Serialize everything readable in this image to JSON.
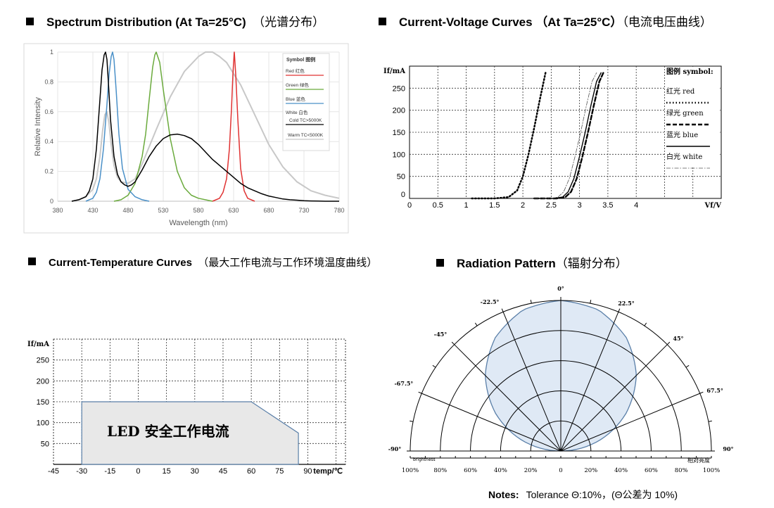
{
  "titles": {
    "spectrum": {
      "en": "Spectrum Distribution (At Ta=25°C)",
      "cn": "（光谱分布）"
    },
    "iv": {
      "en": "Current-Voltage Curves （At Ta=25°C）",
      "cn": "（电流电压曲线）"
    },
    "it": {
      "en": "Current-Temperature Curves",
      "cn": "（最大工作电流与工作环境温度曲线）"
    },
    "radiation": {
      "en": "Radiation Pattern",
      "cn": "（辐射分布）"
    }
  },
  "notes": {
    "label": "Notes:",
    "text": "Tolerance Θ:10%，(Θ公差为 10%)"
  },
  "chart_data": [
    {
      "id": "spectrum",
      "type": "line",
      "xlabel": "Wavelength (nm)",
      "ylabel": "Relative Intensity",
      "xlim": [
        380,
        780
      ],
      "ylim": [
        0,
        1
      ],
      "xticks": [
        "380",
        "430",
        "480",
        "530",
        "580",
        "630",
        "680",
        "730",
        "780"
      ],
      "yticks": [
        "0",
        "0.2",
        "0.4",
        "0.6",
        "0.8",
        "1"
      ],
      "legend_title": "Symbol 图例",
      "legend_position": "top-right",
      "colors": {
        "red": "#e03232",
        "green": "#6aaa3c",
        "blue": "#4a90c8",
        "cold": "#000000",
        "warm": "#c8c8c8"
      },
      "legend": [
        {
          "label": "Red 红色",
          "color": "#e03232"
        },
        {
          "label": "Green 绿色",
          "color": "#6aaa3c"
        },
        {
          "label": "Blue 蓝色",
          "color": "#4a90c8"
        },
        {
          "label": "White 白色",
          "color": "#4a90c8"
        },
        {
          "label": "Cold  TC>5000K",
          "color": "#000000"
        },
        {
          "label": "Warm  TC<5000K",
          "color": "#c8c8c8"
        }
      ],
      "series": [
        {
          "name": "Red 红色",
          "x": [
            600,
            610,
            615,
            620,
            624,
            627,
            629,
            630,
            631,
            633,
            636,
            640,
            645,
            650,
            660
          ],
          "y": [
            0,
            0.02,
            0.06,
            0.15,
            0.35,
            0.62,
            0.85,
            0.93,
            1.0,
            0.85,
            0.55,
            0.22,
            0.07,
            0.02,
            0
          ]
        },
        {
          "name": "Green 绿色",
          "x": [
            460,
            470,
            480,
            490,
            500,
            505,
            510,
            515,
            518,
            520,
            525,
            530,
            540,
            550,
            560,
            570,
            580,
            600
          ],
          "y": [
            0,
            0.01,
            0.04,
            0.12,
            0.3,
            0.45,
            0.68,
            0.9,
            0.98,
            1.0,
            0.93,
            0.75,
            0.42,
            0.2,
            0.09,
            0.04,
            0.02,
            0
          ]
        },
        {
          "name": "Blue 蓝色",
          "x": [
            420,
            430,
            435,
            440,
            445,
            450,
            453,
            456,
            458,
            460,
            463,
            467,
            472,
            480,
            490,
            500,
            510
          ],
          "y": [
            0,
            0.02,
            0.06,
            0.15,
            0.35,
            0.65,
            0.85,
            0.97,
            1.0,
            0.95,
            0.75,
            0.45,
            0.22,
            0.08,
            0.03,
            0.01,
            0
          ]
        },
        {
          "name": "Cold  TC>5000K",
          "x": [
            400,
            410,
            420,
            425,
            430,
            435,
            440,
            443,
            446,
            448,
            450,
            452,
            455,
            460,
            465,
            470,
            475,
            480,
            485,
            490,
            500,
            510,
            520,
            530,
            540,
            550,
            560,
            570,
            580,
            590,
            600,
            610,
            620,
            630,
            640,
            650,
            660,
            670,
            680,
            690,
            700,
            710,
            720,
            730,
            740,
            750,
            760,
            770,
            780
          ],
          "y": [
            0,
            0.01,
            0.03,
            0.07,
            0.15,
            0.35,
            0.68,
            0.88,
            0.98,
            1.0,
            0.95,
            0.8,
            0.55,
            0.3,
            0.18,
            0.13,
            0.11,
            0.1,
            0.11,
            0.13,
            0.21,
            0.3,
            0.37,
            0.42,
            0.445,
            0.45,
            0.44,
            0.42,
            0.38,
            0.33,
            0.28,
            0.24,
            0.2,
            0.16,
            0.12,
            0.09,
            0.07,
            0.05,
            0.035,
            0.025,
            0.015,
            0.01,
            0.007,
            0.004,
            0.002,
            0.001,
            0,
            0,
            0
          ]
        },
        {
          "name": "Warm  TC<5000K",
          "x": [
            400,
            410,
            420,
            430,
            435,
            440,
            444,
            447,
            450,
            453,
            456,
            460,
            465,
            470,
            480,
            490,
            500,
            520,
            540,
            560,
            580,
            590,
            600,
            610,
            620,
            640,
            660,
            680,
            700,
            720,
            740,
            760,
            780
          ],
          "y": [
            0,
            0.01,
            0.03,
            0.08,
            0.15,
            0.3,
            0.48,
            0.58,
            0.6,
            0.52,
            0.38,
            0.24,
            0.16,
            0.13,
            0.12,
            0.15,
            0.25,
            0.48,
            0.7,
            0.87,
            0.97,
            1.0,
            1.0,
            0.97,
            0.93,
            0.78,
            0.58,
            0.38,
            0.23,
            0.13,
            0.07,
            0.04,
            0.02
          ]
        }
      ]
    },
    {
      "id": "iv",
      "type": "line",
      "xlabel": "Vf/V",
      "ylabel": "If/mA",
      "xlim": [
        0,
        5.5
      ],
      "ylim": [
        0,
        300
      ],
      "xticks": [
        "0",
        "0.5",
        "1",
        "1.5",
        "2",
        "2.5",
        "3",
        "3.5",
        "4"
      ],
      "yticks": [
        "0",
        "50",
        "100",
        "150",
        "200",
        "250"
      ],
      "legend_title": "图例 symbol:",
      "legend_position": "top-right",
      "legend": [
        {
          "label": "红光 red",
          "dash": "dotted"
        },
        {
          "label": "绿光 green",
          "dash": "dashed"
        },
        {
          "label": "蓝光 blue",
          "dash": "solid"
        },
        {
          "label": "白光 white",
          "dash": "dashdot"
        }
      ],
      "series": [
        {
          "name": "红光 red",
          "x": [
            1.1,
            1.5,
            1.75,
            1.9,
            2.0,
            2.1,
            2.2,
            2.3,
            2.4
          ],
          "y": [
            0,
            0,
            3,
            18,
            50,
            100,
            160,
            225,
            285
          ]
        },
        {
          "name": "绿光 green",
          "x": [
            2.2,
            2.6,
            2.75,
            2.85,
            2.95,
            3.05,
            3.15,
            3.25,
            3.35,
            3.42
          ],
          "y": [
            0,
            0,
            3,
            15,
            45,
            95,
            150,
            210,
            265,
            285
          ]
        },
        {
          "name": "蓝光 blue",
          "x": [
            2.2,
            2.55,
            2.7,
            2.8,
            2.9,
            3.0,
            3.1,
            3.2,
            3.3,
            3.38
          ],
          "y": [
            0,
            0,
            3,
            15,
            45,
            95,
            150,
            210,
            265,
            285
          ]
        },
        {
          "name": "白光 white",
          "x": [
            2.2,
            2.5,
            2.62,
            2.72,
            2.82,
            2.92,
            3.02,
            3.12,
            3.22,
            3.3
          ],
          "y": [
            0,
            0,
            3,
            15,
            45,
            95,
            150,
            210,
            265,
            285
          ]
        }
      ]
    },
    {
      "id": "it",
      "type": "area",
      "xlabel": "temp/℃",
      "ylabel": "If/mA",
      "xlim": [
        -45,
        110
      ],
      "ylim": [
        0,
        300
      ],
      "xticks": [
        "-45",
        "-30",
        "-15",
        "0",
        "15",
        "30",
        "45",
        "60",
        "75",
        "90"
      ],
      "yticks": [
        "50",
        "100",
        "150",
        "200",
        "250"
      ],
      "annotation": "LED 安全工作电流",
      "fill_color": "#e8e8e8",
      "line_color": "#5a7fa8",
      "series": [
        {
          "x": [
            -30,
            -30,
            60,
            85,
            85
          ],
          "y": [
            0,
            150,
            150,
            75,
            0
          ]
        }
      ]
    },
    {
      "id": "radiation",
      "type": "polar",
      "angle_labels": [
        "-90°",
        "-67.5°",
        "-45°",
        "-22.5°",
        "0°",
        "22.5°",
        "45°",
        "67.5°",
        "90°"
      ],
      "bottom_labels_left": [
        "100%",
        "80%",
        "60%",
        "40%",
        "20%",
        "0"
      ],
      "bottom_labels_right": [
        "20%",
        "40%",
        "60%",
        "80%",
        "100%"
      ],
      "left_axis_label": "brightness",
      "right_axis_label": "相对亮度",
      "fill_color": "#dfe9f5",
      "line_color": "#5a7fa8",
      "intensity": [
        {
          "deg": 0,
          "r": 1.0
        },
        {
          "deg": 15,
          "r": 0.97
        },
        {
          "deg": 30,
          "r": 0.87
        },
        {
          "deg": 45,
          "r": 0.71
        },
        {
          "deg": 60,
          "r": 0.5
        },
        {
          "deg": 75,
          "r": 0.26
        },
        {
          "deg": 90,
          "r": 0
        }
      ]
    }
  ]
}
